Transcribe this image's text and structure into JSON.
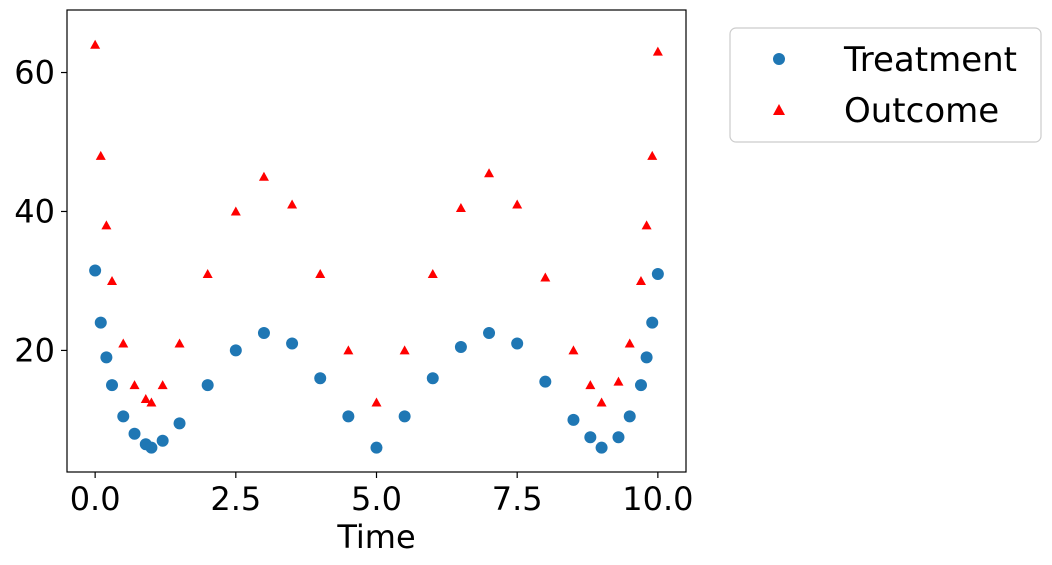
{
  "chart_data": {
    "type": "scatter",
    "title": "",
    "xlabel": "Time",
    "ylabel": "",
    "xlim": [
      -0.5,
      10.5
    ],
    "ylim": [
      2.5,
      69
    ],
    "x_ticks": [
      0.0,
      2.5,
      5.0,
      7.5,
      10.0
    ],
    "x_tick_labels": [
      "0.0",
      "2.5",
      "5.0",
      "7.5",
      "10.0"
    ],
    "y_ticks": [
      20,
      40,
      60
    ],
    "y_tick_labels": [
      "20",
      "40",
      "60"
    ],
    "grid": false,
    "legend_position": "outside-right-top",
    "series": [
      {
        "name": "Treatment",
        "marker": "circle",
        "color": "#1f77b4",
        "x": [
          0.0,
          0.1,
          0.2,
          0.3,
          0.5,
          0.7,
          0.9,
          1.0,
          1.2,
          1.5,
          2.0,
          2.5,
          3.0,
          3.5,
          4.0,
          4.5,
          5.0,
          5.5,
          6.0,
          6.5,
          7.0,
          7.5,
          8.0,
          8.5,
          8.8,
          9.0,
          9.3,
          9.5,
          9.7,
          9.8,
          9.9,
          10.0
        ],
        "y": [
          31.5,
          24.0,
          19.0,
          15.0,
          10.5,
          8.0,
          6.5,
          6.0,
          7.0,
          9.5,
          15.0,
          20.0,
          22.5,
          21.0,
          16.0,
          10.5,
          6.0,
          10.5,
          16.0,
          20.5,
          22.5,
          21.0,
          15.5,
          10.0,
          7.5,
          6.0,
          7.5,
          10.5,
          15.0,
          19.0,
          24.0,
          31.0
        ]
      },
      {
        "name": "Outcome",
        "marker": "triangle",
        "color": "#ff0000",
        "x": [
          0.0,
          0.1,
          0.2,
          0.3,
          0.5,
          0.7,
          0.9,
          1.0,
          1.2,
          1.5,
          2.0,
          2.5,
          3.0,
          3.5,
          4.0,
          4.5,
          5.0,
          5.5,
          6.0,
          6.5,
          7.0,
          7.5,
          8.0,
          8.5,
          8.8,
          9.0,
          9.3,
          9.5,
          9.7,
          9.8,
          9.9,
          10.0
        ],
        "y": [
          64.0,
          48.0,
          38.0,
          30.0,
          21.0,
          15.0,
          13.0,
          12.5,
          15.0,
          21.0,
          31.0,
          40.0,
          45.0,
          41.0,
          31.0,
          20.0,
          12.5,
          20.0,
          31.0,
          40.5,
          45.5,
          41.0,
          30.5,
          20.0,
          15.0,
          12.5,
          15.5,
          21.0,
          30.0,
          38.0,
          48.0,
          63.0
        ]
      }
    ]
  }
}
